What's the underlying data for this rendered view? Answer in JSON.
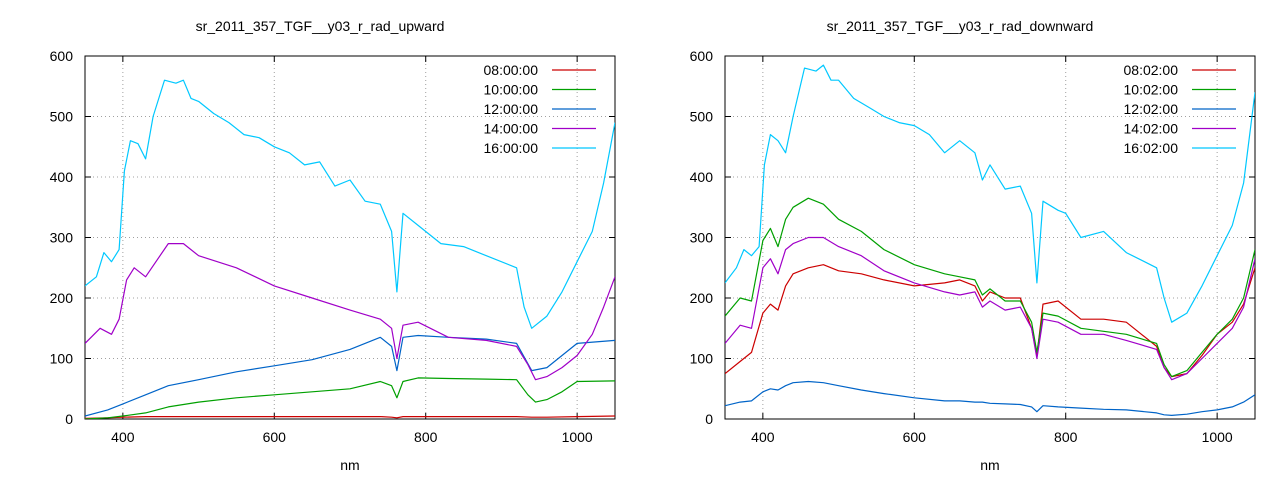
{
  "chart_data": [
    {
      "type": "line",
      "title": "sr_2011_357_TGF__y03_r_rad_upward",
      "xlabel": "nm",
      "ylabel": "",
      "xlim": [
        350,
        1050
      ],
      "ylim": [
        0,
        600
      ],
      "xticks": [
        400,
        600,
        800,
        1000
      ],
      "yticks": [
        0,
        100,
        200,
        300,
        400,
        500,
        600
      ],
      "grid": true,
      "legend_position": "top-right",
      "series": [
        {
          "name": "08:00:00",
          "color": "#cc0000",
          "x": [
            350,
            380,
            400,
            430,
            460,
            500,
            550,
            600,
            650,
            700,
            740,
            755,
            762,
            770,
            790,
            830,
            880,
            920,
            940,
            960,
            1000,
            1050
          ],
          "y": [
            1,
            2,
            3,
            4,
            4,
            4,
            4,
            4,
            4,
            4,
            4,
            3,
            2,
            4,
            4,
            4,
            4,
            4,
            3,
            3,
            4,
            5
          ]
        },
        {
          "name": "10:00:00",
          "color": "#00a000",
          "x": [
            350,
            380,
            400,
            430,
            460,
            500,
            550,
            600,
            650,
            700,
            740,
            755,
            762,
            770,
            790,
            830,
            880,
            920,
            935,
            945,
            960,
            980,
            1000,
            1050
          ],
          "y": [
            0,
            2,
            5,
            10,
            20,
            28,
            35,
            40,
            45,
            50,
            62,
            55,
            35,
            62,
            68,
            67,
            66,
            65,
            40,
            28,
            32,
            45,
            62,
            63
          ]
        },
        {
          "name": "12:00:00",
          "color": "#0064c8",
          "x": [
            350,
            380,
            400,
            430,
            460,
            500,
            550,
            600,
            650,
            700,
            740,
            755,
            762,
            770,
            790,
            830,
            880,
            920,
            940,
            960,
            1000,
            1050
          ],
          "y": [
            5,
            15,
            25,
            40,
            55,
            65,
            78,
            88,
            98,
            115,
            135,
            120,
            80,
            135,
            138,
            135,
            132,
            125,
            80,
            85,
            125,
            130
          ]
        },
        {
          "name": "14:00:00",
          "color": "#a000c8",
          "x": [
            350,
            370,
            385,
            395,
            405,
            415,
            430,
            460,
            480,
            500,
            550,
            600,
            650,
            700,
            740,
            755,
            762,
            770,
            790,
            830,
            880,
            920,
            935,
            945,
            960,
            980,
            1000,
            1020,
            1035,
            1050
          ],
          "y": [
            125,
            150,
            140,
            165,
            230,
            250,
            235,
            290,
            290,
            270,
            250,
            220,
            200,
            180,
            165,
            150,
            100,
            155,
            160,
            135,
            130,
            120,
            90,
            65,
            70,
            85,
            105,
            140,
            185,
            235
          ]
        },
        {
          "name": "16:00:00",
          "color": "#00c8ff",
          "x": [
            350,
            365,
            375,
            385,
            395,
            402,
            410,
            420,
            430,
            440,
            455,
            470,
            480,
            490,
            500,
            520,
            540,
            560,
            580,
            600,
            620,
            640,
            660,
            680,
            700,
            720,
            740,
            755,
            762,
            770,
            790,
            820,
            850,
            880,
            920,
            930,
            940,
            960,
            980,
            1000,
            1020,
            1035,
            1050
          ],
          "y": [
            220,
            235,
            275,
            260,
            280,
            410,
            460,
            455,
            430,
            500,
            560,
            555,
            560,
            530,
            525,
            505,
            490,
            470,
            465,
            450,
            440,
            420,
            425,
            385,
            395,
            360,
            355,
            310,
            210,
            340,
            320,
            290,
            285,
            270,
            250,
            185,
            150,
            170,
            210,
            260,
            310,
            390,
            490
          ]
        }
      ]
    },
    {
      "type": "line",
      "title": "sr_2011_357_TGF__y03_r_rad_downward",
      "xlabel": "nm",
      "ylabel": "",
      "xlim": [
        350,
        1050
      ],
      "ylim": [
        0,
        600
      ],
      "xticks": [
        400,
        600,
        800,
        1000
      ],
      "yticks": [
        0,
        100,
        200,
        300,
        400,
        500,
        600
      ],
      "grid": true,
      "legend_position": "top-right",
      "series": [
        {
          "name": "08:02:00",
          "color": "#cc0000",
          "x": [
            350,
            370,
            385,
            400,
            410,
            420,
            430,
            440,
            460,
            480,
            500,
            530,
            560,
            600,
            640,
            660,
            680,
            690,
            700,
            720,
            740,
            755,
            762,
            770,
            790,
            820,
            850,
            880,
            920,
            930,
            940,
            960,
            980,
            1000,
            1020,
            1035,
            1050
          ],
          "y": [
            75,
            95,
            110,
            175,
            190,
            180,
            220,
            240,
            250,
            255,
            245,
            240,
            230,
            220,
            225,
            230,
            220,
            195,
            210,
            200,
            200,
            150,
            105,
            190,
            195,
            165,
            165,
            160,
            120,
            85,
            70,
            75,
            105,
            140,
            160,
            190,
            250
          ]
        },
        {
          "name": "10:02:00",
          "color": "#00a000",
          "x": [
            350,
            370,
            385,
            400,
            410,
            420,
            430,
            440,
            460,
            480,
            500,
            530,
            560,
            600,
            640,
            660,
            680,
            690,
            700,
            720,
            740,
            755,
            762,
            770,
            790,
            820,
            850,
            880,
            920,
            930,
            940,
            960,
            980,
            1000,
            1020,
            1035,
            1050
          ],
          "y": [
            170,
            200,
            195,
            295,
            315,
            285,
            330,
            350,
            365,
            355,
            330,
            310,
            280,
            255,
            240,
            235,
            230,
            205,
            215,
            195,
            195,
            160,
            110,
            175,
            170,
            150,
            145,
            140,
            125,
            90,
            70,
            80,
            110,
            140,
            165,
            200,
            280
          ]
        },
        {
          "name": "12:02:00",
          "color": "#0064c8",
          "x": [
            350,
            370,
            385,
            400,
            410,
            420,
            430,
            440,
            460,
            480,
            500,
            530,
            560,
            600,
            640,
            660,
            680,
            690,
            700,
            720,
            740,
            755,
            762,
            770,
            790,
            820,
            850,
            880,
            920,
            930,
            940,
            960,
            980,
            1000,
            1020,
            1035,
            1050
          ],
          "y": [
            22,
            28,
            30,
            45,
            50,
            48,
            55,
            60,
            62,
            60,
            55,
            48,
            42,
            35,
            30,
            30,
            28,
            28,
            26,
            25,
            24,
            20,
            12,
            22,
            20,
            18,
            16,
            15,
            10,
            7,
            6,
            8,
            12,
            15,
            20,
            28,
            40
          ]
        },
        {
          "name": "14:02:00",
          "color": "#a000c8",
          "x": [
            350,
            370,
            385,
            400,
            410,
            420,
            430,
            440,
            460,
            480,
            500,
            530,
            560,
            600,
            640,
            660,
            680,
            690,
            700,
            720,
            740,
            755,
            762,
            770,
            790,
            820,
            850,
            880,
            920,
            930,
            940,
            960,
            980,
            1000,
            1020,
            1035,
            1050
          ],
          "y": [
            125,
            155,
            150,
            250,
            265,
            240,
            280,
            290,
            300,
            300,
            285,
            270,
            245,
            225,
            210,
            205,
            210,
            185,
            195,
            180,
            185,
            150,
            100,
            165,
            160,
            140,
            140,
            130,
            115,
            85,
            65,
            75,
            100,
            125,
            150,
            185,
            265
          ]
        },
        {
          "name": "16:02:00",
          "color": "#00c8ff",
          "x": [
            350,
            365,
            375,
            385,
            395,
            402,
            410,
            420,
            430,
            440,
            455,
            470,
            480,
            490,
            500,
            520,
            540,
            560,
            580,
            600,
            620,
            640,
            660,
            680,
            690,
            700,
            720,
            740,
            755,
            762,
            770,
            790,
            800,
            820,
            850,
            880,
            920,
            930,
            940,
            960,
            980,
            1000,
            1020,
            1035,
            1050
          ],
          "y": [
            225,
            250,
            280,
            270,
            285,
            420,
            470,
            460,
            440,
            500,
            580,
            575,
            585,
            560,
            560,
            530,
            515,
            500,
            490,
            485,
            470,
            440,
            460,
            440,
            395,
            420,
            380,
            385,
            340,
            225,
            360,
            345,
            340,
            300,
            310,
            275,
            250,
            200,
            160,
            175,
            220,
            270,
            320,
            390,
            540
          ]
        }
      ]
    }
  ]
}
